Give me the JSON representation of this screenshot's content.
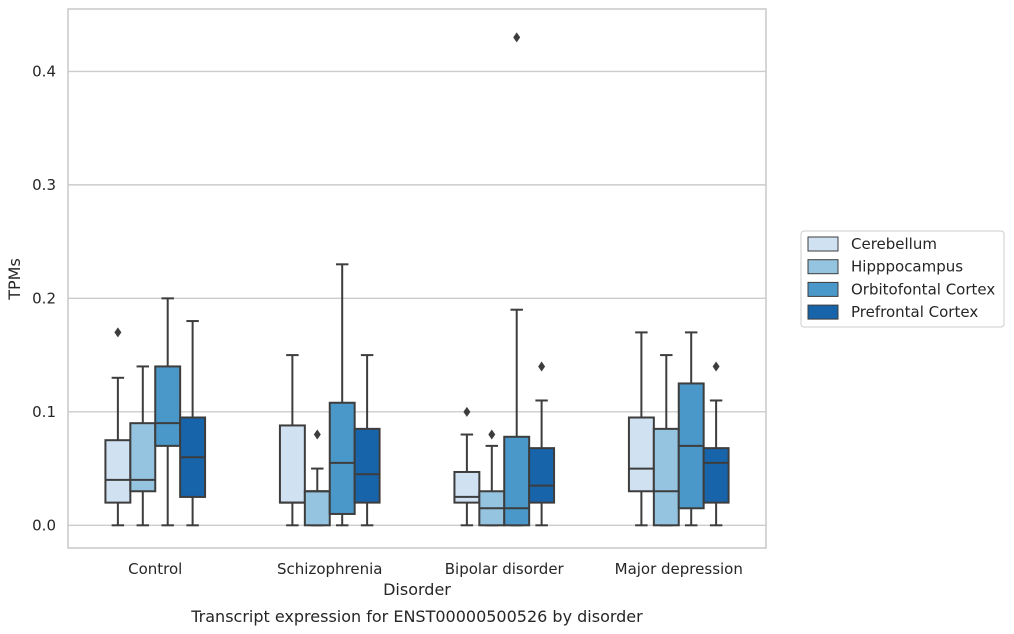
{
  "chart_data": {
    "type": "box",
    "title": "",
    "caption": "Transcript expression for ENST00000500526 by disorder",
    "xlabel": "Disorder",
    "ylabel": "TPMs",
    "ylim": [
      -0.02,
      0.455
    ],
    "yticks": [
      0.0,
      0.1,
      0.2,
      0.3,
      0.4
    ],
    "ytick_labels": [
      "0.0",
      "0.1",
      "0.2",
      "0.3",
      "0.4"
    ],
    "grid": "horizontal",
    "legend_position": "right",
    "categories": [
      "Control",
      "Schizophrenia",
      "Bipolar disorder",
      "Major depression"
    ],
    "series": [
      {
        "name": "Cerebellum",
        "color": "#d0e1f2",
        "boxes": [
          {
            "q1": 0.02,
            "median": 0.04,
            "q3": 0.075,
            "whisker_low": 0.0,
            "whisker_high": 0.13,
            "outliers": [
              0.17
            ]
          },
          {
            "q1": 0.02,
            "median": 0.02,
            "q3": 0.088,
            "whisker_low": 0.0,
            "whisker_high": 0.15,
            "outliers": []
          },
          {
            "q1": 0.02,
            "median": 0.025,
            "q3": 0.047,
            "whisker_low": 0.0,
            "whisker_high": 0.08,
            "outliers": [
              0.1
            ]
          },
          {
            "q1": 0.03,
            "median": 0.05,
            "q3": 0.095,
            "whisker_low": 0.0,
            "whisker_high": 0.17,
            "outliers": []
          }
        ]
      },
      {
        "name": "Hipppocampus",
        "color": "#94c4df",
        "boxes": [
          {
            "q1": 0.03,
            "median": 0.04,
            "q3": 0.09,
            "whisker_low": 0.0,
            "whisker_high": 0.14,
            "outliers": []
          },
          {
            "q1": 0.0,
            "median": 0.03,
            "q3": 0.03,
            "whisker_low": 0.0,
            "whisker_high": 0.05,
            "outliers": [
              0.08
            ]
          },
          {
            "q1": 0.0,
            "median": 0.015,
            "q3": 0.03,
            "whisker_low": 0.0,
            "whisker_high": 0.07,
            "outliers": [
              0.08
            ]
          },
          {
            "q1": 0.0,
            "median": 0.03,
            "q3": 0.085,
            "whisker_low": 0.0,
            "whisker_high": 0.15,
            "outliers": []
          }
        ]
      },
      {
        "name": "Orbitofontal Cortex",
        "color": "#4a98c9",
        "boxes": [
          {
            "q1": 0.07,
            "median": 0.09,
            "q3": 0.14,
            "whisker_low": 0.0,
            "whisker_high": 0.2,
            "outliers": []
          },
          {
            "q1": 0.01,
            "median": 0.055,
            "q3": 0.108,
            "whisker_low": 0.0,
            "whisker_high": 0.23,
            "outliers": []
          },
          {
            "q1": 0.0,
            "median": 0.015,
            "q3": 0.078,
            "whisker_low": 0.0,
            "whisker_high": 0.19,
            "outliers": [
              0.43
            ]
          },
          {
            "q1": 0.015,
            "median": 0.07,
            "q3": 0.125,
            "whisker_low": 0.0,
            "whisker_high": 0.17,
            "outliers": []
          }
        ]
      },
      {
        "name": "Prefrontal Cortex",
        "color": "#1764ab",
        "boxes": [
          {
            "q1": 0.025,
            "median": 0.06,
            "q3": 0.095,
            "whisker_low": 0.0,
            "whisker_high": 0.18,
            "outliers": []
          },
          {
            "q1": 0.02,
            "median": 0.045,
            "q3": 0.085,
            "whisker_low": 0.0,
            "whisker_high": 0.15,
            "outliers": []
          },
          {
            "q1": 0.02,
            "median": 0.035,
            "q3": 0.068,
            "whisker_low": 0.0,
            "whisker_high": 0.11,
            "outliers": [
              0.14
            ]
          },
          {
            "q1": 0.02,
            "median": 0.055,
            "q3": 0.068,
            "whisker_low": 0.0,
            "whisker_high": 0.11,
            "outliers": [
              0.14
            ]
          }
        ]
      }
    ]
  }
}
